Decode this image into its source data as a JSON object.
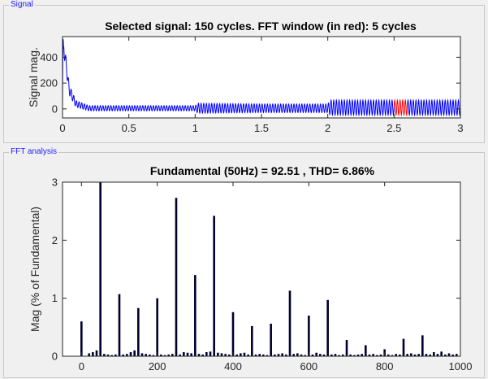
{
  "panels": {
    "signal": {
      "title": "Signal"
    },
    "fft": {
      "title": "FFT analysis"
    }
  },
  "colors": {
    "signal_line": "#0000ff",
    "fft_window": "#ff0000",
    "fft_bars": "#00002e",
    "axes": "#262626",
    "panel_title": "#1a1aff"
  },
  "chart_data": [
    {
      "type": "line",
      "title": "Selected signal: 150 cycles. FFT window (in red): 5 cycles",
      "xlabel": "",
      "ylabel": "Signal mag.",
      "xlim": [
        0,
        3
      ],
      "ylim": [
        -70,
        560
      ],
      "xticks": [
        0,
        0.5,
        1,
        1.5,
        2,
        2.5,
        3
      ],
      "xtick_labels": [
        "0",
        "0.5",
        "1",
        "1.5",
        "2",
        "2.5",
        "3"
      ],
      "yticks": [
        0,
        200,
        400
      ],
      "ytick_labels": [
        "0",
        "200",
        "400"
      ],
      "grid": false,
      "series": [
        {
          "color": "#0000ff",
          "frequency_hz": 50,
          "envelope": [
            {
              "t": 0.0,
              "center": 0,
              "amp": 540
            },
            {
              "t": 0.01,
              "center": 480,
              "amp": 60
            },
            {
              "t": 0.05,
              "center": 150,
              "amp": 40
            },
            {
              "t": 0.1,
              "center": 40,
              "amp": 25
            },
            {
              "t": 0.2,
              "center": 5,
              "amp": 20
            },
            {
              "t": 1.0,
              "center": 5,
              "amp": 20
            },
            {
              "t": 1.02,
              "center": 5,
              "amp": 38
            },
            {
              "t": 1.5,
              "center": 5,
              "amp": 33
            },
            {
              "t": 2.0,
              "center": 5,
              "amp": 33
            },
            {
              "t": 2.02,
              "center": 10,
              "amp": 58
            },
            {
              "t": 3.0,
              "center": 10,
              "amp": 58
            }
          ]
        }
      ],
      "fft_window": {
        "start": 2.5,
        "end": 2.6,
        "cycles": 5,
        "color": "#ff0000"
      }
    },
    {
      "type": "bar",
      "title": "Fundamental (50Hz) = 92.51 , THD= 6.86%",
      "xlabel": "",
      "ylabel": "Mag (% of Fundamental)",
      "xlim": [
        -50,
        1000
      ],
      "ylim": [
        0,
        3
      ],
      "xticks": [
        0,
        200,
        400,
        600,
        800,
        1000
      ],
      "xtick_labels": [
        "0",
        "200",
        "400",
        "600",
        "800",
        "1000"
      ],
      "yticks": [
        0,
        1,
        2,
        3
      ],
      "ytick_labels": [
        "0",
        "1",
        "2",
        "3"
      ],
      "grid": false,
      "bar_color": "#00002e",
      "bars": [
        {
          "x": 0,
          "y": 0.6
        },
        {
          "x": 20,
          "y": 0.05
        },
        {
          "x": 30,
          "y": 0.07
        },
        {
          "x": 40,
          "y": 0.1
        },
        {
          "x": 50,
          "y": 3.0
        },
        {
          "x": 60,
          "y": 0.04
        },
        {
          "x": 70,
          "y": 0.03
        },
        {
          "x": 80,
          "y": 0.02
        },
        {
          "x": 90,
          "y": 0.03
        },
        {
          "x": 100,
          "y": 1.07
        },
        {
          "x": 110,
          "y": 0.03
        },
        {
          "x": 120,
          "y": 0.04
        },
        {
          "x": 130,
          "y": 0.07
        },
        {
          "x": 140,
          "y": 0.1
        },
        {
          "x": 150,
          "y": 0.83
        },
        {
          "x": 160,
          "y": 0.05
        },
        {
          "x": 170,
          "y": 0.04
        },
        {
          "x": 180,
          "y": 0.03
        },
        {
          "x": 190,
          "y": 0.02
        },
        {
          "x": 200,
          "y": 1.0
        },
        {
          "x": 210,
          "y": 0.03
        },
        {
          "x": 220,
          "y": 0.02
        },
        {
          "x": 230,
          "y": 0.03
        },
        {
          "x": 240,
          "y": 0.04
        },
        {
          "x": 250,
          "y": 2.73
        },
        {
          "x": 260,
          "y": 0.03
        },
        {
          "x": 270,
          "y": 0.07
        },
        {
          "x": 280,
          "y": 0.06
        },
        {
          "x": 290,
          "y": 0.05
        },
        {
          "x": 300,
          "y": 1.4
        },
        {
          "x": 310,
          "y": 0.04
        },
        {
          "x": 320,
          "y": 0.03
        },
        {
          "x": 330,
          "y": 0.07
        },
        {
          "x": 340,
          "y": 0.08
        },
        {
          "x": 350,
          "y": 2.42
        },
        {
          "x": 360,
          "y": 0.06
        },
        {
          "x": 370,
          "y": 0.05
        },
        {
          "x": 380,
          "y": 0.04
        },
        {
          "x": 390,
          "y": 0.03
        },
        {
          "x": 400,
          "y": 0.76
        },
        {
          "x": 410,
          "y": 0.03
        },
        {
          "x": 420,
          "y": 0.05
        },
        {
          "x": 430,
          "y": 0.06
        },
        {
          "x": 440,
          "y": 0.03
        },
        {
          "x": 450,
          "y": 0.52
        },
        {
          "x": 460,
          "y": 0.03
        },
        {
          "x": 470,
          "y": 0.04
        },
        {
          "x": 480,
          "y": 0.03
        },
        {
          "x": 490,
          "y": 0.02
        },
        {
          "x": 500,
          "y": 0.56
        },
        {
          "x": 510,
          "y": 0.03
        },
        {
          "x": 520,
          "y": 0.04
        },
        {
          "x": 530,
          "y": 0.05
        },
        {
          "x": 540,
          "y": 0.03
        },
        {
          "x": 550,
          "y": 1.13
        },
        {
          "x": 560,
          "y": 0.04
        },
        {
          "x": 570,
          "y": 0.05
        },
        {
          "x": 580,
          "y": 0.03
        },
        {
          "x": 590,
          "y": 0.02
        },
        {
          "x": 600,
          "y": 0.7
        },
        {
          "x": 610,
          "y": 0.03
        },
        {
          "x": 620,
          "y": 0.06
        },
        {
          "x": 630,
          "y": 0.04
        },
        {
          "x": 640,
          "y": 0.03
        },
        {
          "x": 650,
          "y": 0.97
        },
        {
          "x": 660,
          "y": 0.03
        },
        {
          "x": 670,
          "y": 0.04
        },
        {
          "x": 680,
          "y": 0.02
        },
        {
          "x": 690,
          "y": 0.03
        },
        {
          "x": 700,
          "y": 0.28
        },
        {
          "x": 710,
          "y": 0.03
        },
        {
          "x": 720,
          "y": 0.02
        },
        {
          "x": 730,
          "y": 0.03
        },
        {
          "x": 740,
          "y": 0.04
        },
        {
          "x": 750,
          "y": 0.19
        },
        {
          "x": 760,
          "y": 0.03
        },
        {
          "x": 770,
          "y": 0.04
        },
        {
          "x": 780,
          "y": 0.02
        },
        {
          "x": 790,
          "y": 0.03
        },
        {
          "x": 800,
          "y": 0.12
        },
        {
          "x": 810,
          "y": 0.03
        },
        {
          "x": 820,
          "y": 0.02
        },
        {
          "x": 830,
          "y": 0.04
        },
        {
          "x": 840,
          "y": 0.03
        },
        {
          "x": 850,
          "y": 0.3
        },
        {
          "x": 860,
          "y": 0.04
        },
        {
          "x": 870,
          "y": 0.05
        },
        {
          "x": 880,
          "y": 0.03
        },
        {
          "x": 890,
          "y": 0.04
        },
        {
          "x": 900,
          "y": 0.36
        },
        {
          "x": 910,
          "y": 0.04
        },
        {
          "x": 920,
          "y": 0.03
        },
        {
          "x": 930,
          "y": 0.07
        },
        {
          "x": 940,
          "y": 0.04
        },
        {
          "x": 950,
          "y": 0.08
        },
        {
          "x": 960,
          "y": 0.03
        },
        {
          "x": 970,
          "y": 0.05
        },
        {
          "x": 980,
          "y": 0.03
        },
        {
          "x": 990,
          "y": 0.04
        }
      ]
    }
  ]
}
